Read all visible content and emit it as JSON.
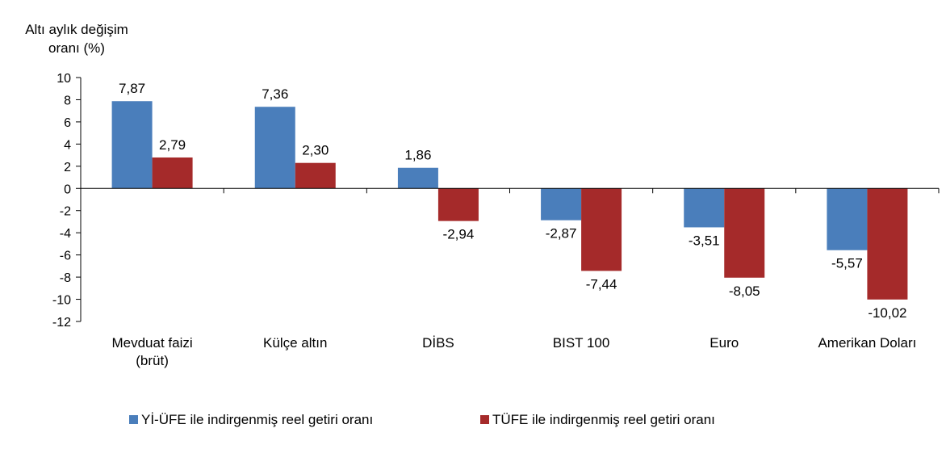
{
  "chart_data": {
    "type": "bar",
    "ylabel": [
      "Altı aylık değişim",
      "oranı (%)"
    ],
    "categories": [
      [
        "Mevduat faizi",
        "(brüt)"
      ],
      [
        "Külçe altın"
      ],
      [
        "DİBS"
      ],
      [
        "BIST 100"
      ],
      [
        "Euro"
      ],
      [
        "Amerikan Doları"
      ]
    ],
    "series": [
      {
        "name": "Yİ-ÜFE ile indirgenmiş reel getiri oranı",
        "color": "#4a7ebb",
        "values": [
          7.87,
          7.36,
          1.86,
          -2.87,
          -3.51,
          -5.57
        ],
        "labels": [
          "7,87",
          "7,36",
          "1,86",
          "-2,87",
          "-3,51",
          "-5,57"
        ]
      },
      {
        "name": "TÜFE ile indirgenmiş reel getiri oranı",
        "color": "#a52a2a",
        "values": [
          2.79,
          2.3,
          -2.94,
          -7.44,
          -8.05,
          -10.02
        ],
        "labels": [
          "2,79",
          "2,30",
          "-2,94",
          "-7,44",
          "-8,05",
          "-10,02"
        ]
      }
    ],
    "ylim": [
      -12,
      10
    ],
    "yticks": [
      10,
      8,
      6,
      4,
      2,
      0,
      -2,
      -4,
      -6,
      -8,
      -10,
      -12
    ],
    "grid": false,
    "legend": "bottom"
  }
}
